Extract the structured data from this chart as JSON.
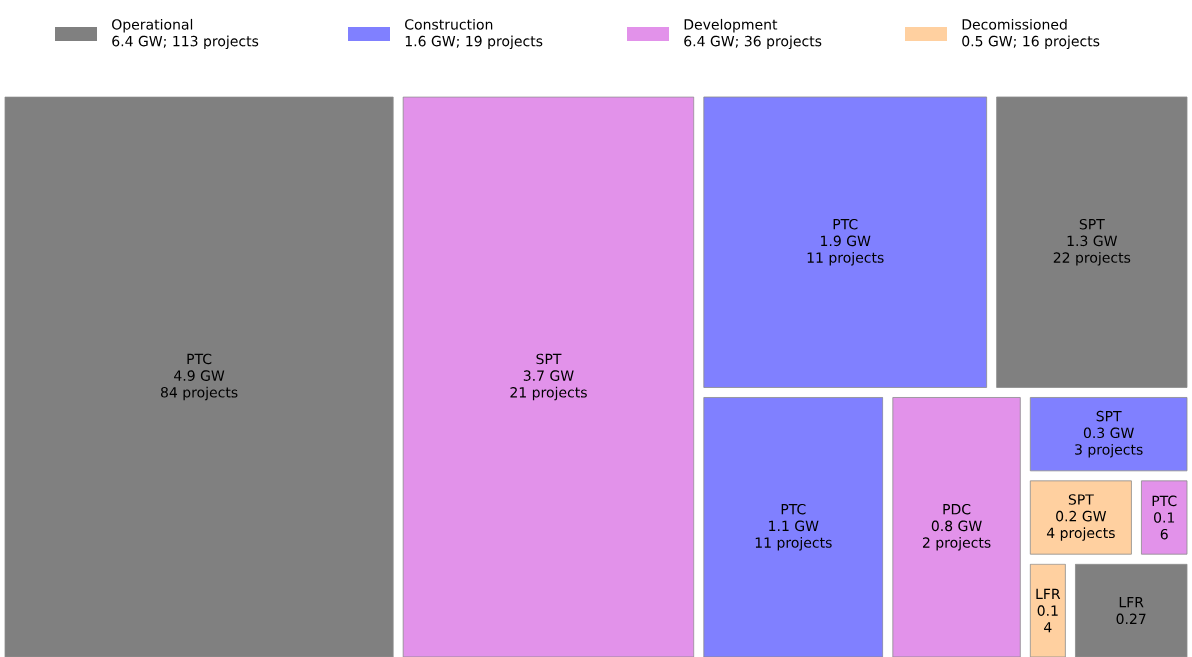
{
  "chart_data": {
    "type": "other",
    "categories": [
      "PTC",
      "SPT",
      "PTC",
      "SPT",
      "PTC",
      "PDC",
      "SPT",
      "SPT",
      "PTC",
      "LFR",
      "LFR"
    ],
    "series": [
      {
        "name": "Operational",
        "color": "#808080",
        "values": [
          4.9,
          null,
          null,
          1.3,
          null,
          null,
          null,
          null,
          null,
          null,
          0.27
        ],
        "value_labels": [
          "4.9 GW",
          null,
          null,
          "1.3 GW",
          null,
          null,
          null,
          null,
          null,
          null,
          "0.27"
        ]
      },
      {
        "name": "Construction",
        "color": "#8080ff",
        "values": [
          null,
          null,
          1.9,
          null,
          1.1,
          null,
          0.3,
          null,
          null,
          null,
          null
        ],
        "value_labels": [
          null,
          null,
          "1.9 GW",
          null,
          "1.1 GW",
          null,
          "0.3 GW",
          null,
          null,
          null,
          null
        ]
      },
      {
        "name": "Development",
        "color": "#e292ea",
        "values": [
          null,
          3.7,
          null,
          null,
          null,
          0.8,
          null,
          null,
          0.1,
          null,
          null
        ],
        "value_labels": [
          null,
          "3.7 GW",
          null,
          null,
          null,
          "0.8 GW",
          null,
          null,
          "0.1",
          null,
          null
        ]
      },
      {
        "name": "Decomissioned",
        "color": "#ffd0a0",
        "values": [
          null,
          null,
          null,
          null,
          null,
          null,
          null,
          0.2,
          null,
          0.1,
          null
        ],
        "value_labels": [
          null,
          null,
          null,
          null,
          null,
          null,
          null,
          "0.2 GW",
          null,
          "0.1",
          null
        ]
      }
    ],
    "annotations": [
      "6.4 GW; 113 projects",
      "1.6 GW; 19 projects",
      "6.4 GW; 36 projects",
      "0.5 GW; 16 projects",
      "84 projects",
      "21 projects",
      "11 projects",
      "22 projects",
      "11 projects",
      "2 projects",
      "3 projects",
      "4 projects",
      "6",
      "4"
    ],
    "legend": "top"
  }
}
